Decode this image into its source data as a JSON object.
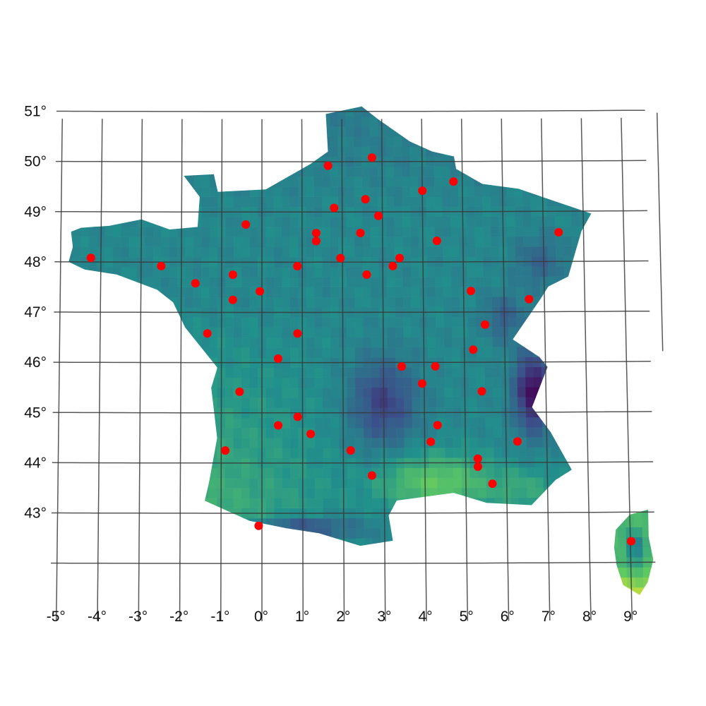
{
  "map": {
    "projection": "conic",
    "lat_ticks": [
      {
        "value": 51,
        "label": "51°"
      },
      {
        "value": 50,
        "label": "50°"
      },
      {
        "value": 49,
        "label": "49°"
      },
      {
        "value": 48,
        "label": "48°"
      },
      {
        "value": 47,
        "label": "47°"
      },
      {
        "value": 46,
        "label": "46°"
      },
      {
        "value": 45,
        "label": "45°"
      },
      {
        "value": 44,
        "label": "44°"
      },
      {
        "value": 43,
        "label": "43°"
      },
      {
        "value": 42,
        "label": ""
      }
    ],
    "lon_ticks": [
      {
        "value": -5,
        "label": "-5°"
      },
      {
        "value": -4,
        "label": "-4°"
      },
      {
        "value": -3,
        "label": "-3°"
      },
      {
        "value": -2,
        "label": "-2°"
      },
      {
        "value": -1,
        "label": "-1°"
      },
      {
        "value": 0,
        "label": "0°"
      },
      {
        "value": 1,
        "label": "1°"
      },
      {
        "value": 2,
        "label": "2°"
      },
      {
        "value": 3,
        "label": "3°"
      },
      {
        "value": 4,
        "label": "4°"
      },
      {
        "value": 5,
        "label": "5°"
      },
      {
        "value": 6,
        "label": "6°"
      },
      {
        "value": 7,
        "label": "7°"
      },
      {
        "value": 8,
        "label": "8°"
      },
      {
        "value": 9,
        "label": "9°"
      }
    ],
    "raster": {
      "colormap": "viridis",
      "cell_size_deg": 0.2,
      "colors": [
        "#440154",
        "#3b528b",
        "#21918c",
        "#5ec962",
        "#fde725"
      ]
    },
    "points": {
      "color": "#ff0000",
      "locations": [
        [
          2.75,
          50.08
        ],
        [
          1.65,
          49.92
        ],
        [
          4.78,
          49.6
        ],
        [
          4.0,
          49.42
        ],
        [
          2.58,
          49.25
        ],
        [
          1.8,
          49.08
        ],
        [
          2.9,
          48.92
        ],
        [
          -0.4,
          48.75
        ],
        [
          1.35,
          48.58
        ],
        [
          1.35,
          48.42
        ],
        [
          2.45,
          48.58
        ],
        [
          4.35,
          48.42
        ],
        [
          7.38,
          48.58
        ],
        [
          -4.25,
          48.08
        ],
        [
          1.95,
          48.08
        ],
        [
          3.42,
          48.08
        ],
        [
          -2.5,
          47.92
        ],
        [
          0.88,
          47.92
        ],
        [
          3.25,
          47.92
        ],
        [
          -0.72,
          47.75
        ],
        [
          2.6,
          47.75
        ],
        [
          -1.65,
          47.58
        ],
        [
          -0.05,
          47.42
        ],
        [
          5.18,
          47.42
        ],
        [
          -0.72,
          47.25
        ],
        [
          6.62,
          47.25
        ],
        [
          5.52,
          46.75
        ],
        [
          -1.35,
          46.58
        ],
        [
          0.88,
          46.58
        ],
        [
          5.22,
          46.25
        ],
        [
          0.4,
          46.08
        ],
        [
          3.45,
          45.92
        ],
        [
          4.28,
          45.92
        ],
        [
          3.95,
          45.58
        ],
        [
          -0.55,
          45.42
        ],
        [
          5.42,
          45.42
        ],
        [
          0.88,
          44.92
        ],
        [
          0.4,
          44.75
        ],
        [
          4.32,
          44.75
        ],
        [
          1.2,
          44.58
        ],
        [
          4.15,
          44.42
        ],
        [
          6.28,
          44.42
        ],
        [
          -0.9,
          44.25
        ],
        [
          2.18,
          44.25
        ],
        [
          5.3,
          44.08
        ],
        [
          5.3,
          43.92
        ],
        [
          2.7,
          43.75
        ],
        [
          5.65,
          43.58
        ],
        [
          -0.08,
          42.75
        ],
        [
          9.02,
          42.42
        ]
      ]
    }
  }
}
